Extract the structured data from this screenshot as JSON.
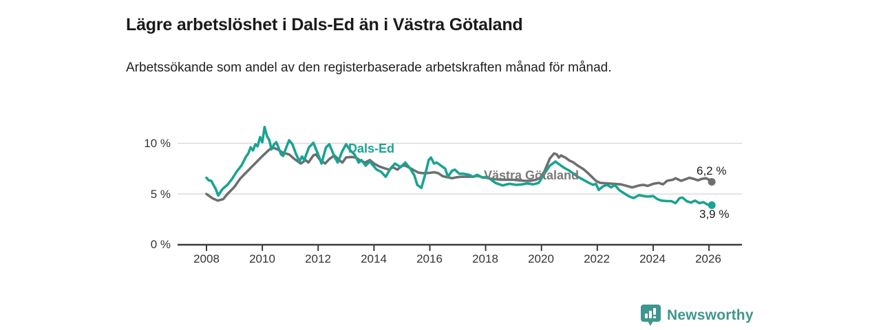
{
  "header": {
    "title": "Lägre arbetslöshet i Dals-Ed än i Västra Götaland",
    "subtitle": "Arbetssökande som andel av den registerbaserade arbetskraften månad för månad."
  },
  "chart_data": {
    "type": "line",
    "title": "Lägre arbetslöshet i Dals-Ed än i Västra Götaland",
    "xlabel": "",
    "ylabel": "",
    "grid": "horizontal-only",
    "grid_color": "#d8d8d8",
    "axis_color": "#3a3a3a",
    "ylim": [
      0,
      12.3
    ],
    "xlim": [
      2006.95,
      2027.2
    ],
    "grid_values": [
      5,
      10
    ],
    "y_ticks": [
      "10 %",
      "5 %",
      "0 %"
    ],
    "y_tick_values": [
      10,
      5,
      0
    ],
    "x_ticks": [
      "2008",
      "2010",
      "2012",
      "2014",
      "2016",
      "2018",
      "2020",
      "2022",
      "2024",
      "2026"
    ],
    "x_tick_values": [
      2008,
      2010,
      2012,
      2014,
      2016,
      2018,
      2020,
      2022,
      2024,
      2026
    ],
    "legend_position": "inline-labels",
    "series": [
      {
        "name": "Västra Götaland",
        "color": "#6e6e6e",
        "end_label": "6,2 %",
        "end_value": 6.2,
        "points": [
          [
            2008.0,
            5.0
          ],
          [
            2008.2,
            4.6
          ],
          [
            2008.4,
            4.35
          ],
          [
            2008.6,
            4.5
          ],
          [
            2008.75,
            5.0
          ],
          [
            2009.0,
            5.7
          ],
          [
            2009.2,
            6.5
          ],
          [
            2009.45,
            7.2
          ],
          [
            2009.7,
            7.9
          ],
          [
            2009.95,
            8.6
          ],
          [
            2010.2,
            9.25
          ],
          [
            2010.35,
            9.6
          ],
          [
            2010.55,
            9.4
          ],
          [
            2010.75,
            9.05
          ],
          [
            2010.96,
            8.9
          ],
          [
            2011.15,
            8.45
          ],
          [
            2011.38,
            8.0
          ],
          [
            2011.55,
            8.35
          ],
          [
            2011.65,
            8.1
          ],
          [
            2011.83,
            8.8
          ],
          [
            2011.92,
            8.9
          ],
          [
            2012.07,
            8.35
          ],
          [
            2012.25,
            8.0
          ],
          [
            2012.4,
            8.45
          ],
          [
            2012.58,
            8.8
          ],
          [
            2012.75,
            8.35
          ],
          [
            2012.87,
            8.1
          ],
          [
            2013.0,
            8.6
          ],
          [
            2013.2,
            8.65
          ],
          [
            2013.35,
            8.6
          ],
          [
            2013.5,
            8.3
          ],
          [
            2013.68,
            8.1
          ],
          [
            2013.85,
            8.35
          ],
          [
            2014.0,
            8.0
          ],
          [
            2014.2,
            7.7
          ],
          [
            2014.42,
            7.5
          ],
          [
            2014.55,
            7.4
          ],
          [
            2014.67,
            7.65
          ],
          [
            2014.84,
            7.4
          ],
          [
            2015.0,
            7.8
          ],
          [
            2015.12,
            7.8
          ],
          [
            2015.3,
            7.55
          ],
          [
            2015.46,
            7.3
          ],
          [
            2015.6,
            7.1
          ],
          [
            2015.78,
            7.05
          ],
          [
            2015.96,
            7.07
          ],
          [
            2016.15,
            7.15
          ],
          [
            2016.3,
            7.05
          ],
          [
            2016.47,
            6.75
          ],
          [
            2016.64,
            6.65
          ],
          [
            2016.8,
            6.55
          ],
          [
            2016.97,
            6.65
          ],
          [
            2017.13,
            6.7
          ],
          [
            2017.3,
            6.7
          ],
          [
            2017.55,
            6.7
          ],
          [
            2017.7,
            6.8
          ],
          [
            2017.88,
            6.65
          ],
          [
            2018.05,
            6.6
          ],
          [
            2018.2,
            6.5
          ],
          [
            2018.4,
            6.45
          ],
          [
            2018.6,
            6.4
          ],
          [
            2018.8,
            6.4
          ],
          [
            2019.0,
            6.4
          ],
          [
            2019.2,
            6.35
          ],
          [
            2019.4,
            6.3
          ],
          [
            2019.6,
            6.3
          ],
          [
            2019.8,
            6.4
          ],
          [
            2019.95,
            6.6
          ],
          [
            2020.1,
            7.2
          ],
          [
            2020.3,
            8.5
          ],
          [
            2020.45,
            9.0
          ],
          [
            2020.55,
            8.9
          ],
          [
            2020.62,
            8.6
          ],
          [
            2020.7,
            8.8
          ],
          [
            2020.85,
            8.6
          ],
          [
            2021.0,
            8.3
          ],
          [
            2021.15,
            8.1
          ],
          [
            2021.3,
            7.8
          ],
          [
            2021.5,
            7.45
          ],
          [
            2021.65,
            7.1
          ],
          [
            2021.8,
            6.7
          ],
          [
            2021.95,
            6.3
          ],
          [
            2022.1,
            6.1
          ],
          [
            2022.35,
            6.05
          ],
          [
            2022.6,
            6.0
          ],
          [
            2022.85,
            5.95
          ],
          [
            2023.05,
            5.8
          ],
          [
            2023.25,
            5.65
          ],
          [
            2023.5,
            5.85
          ],
          [
            2023.65,
            5.9
          ],
          [
            2023.8,
            5.8
          ],
          [
            2024.0,
            6.0
          ],
          [
            2024.2,
            6.1
          ],
          [
            2024.35,
            5.95
          ],
          [
            2024.5,
            6.3
          ],
          [
            2024.7,
            6.4
          ],
          [
            2024.8,
            6.55
          ],
          [
            2025.0,
            6.3
          ],
          [
            2025.15,
            6.45
          ],
          [
            2025.3,
            6.6
          ],
          [
            2025.45,
            6.5
          ],
          [
            2025.6,
            6.35
          ],
          [
            2025.75,
            6.5
          ],
          [
            2025.9,
            6.55
          ],
          [
            2026.0,
            6.4
          ],
          [
            2026.1,
            6.2
          ]
        ]
      },
      {
        "name": "Dals-Ed",
        "color": "#19a392",
        "end_label": "3,9 %",
        "end_value": 3.9,
        "points": [
          [
            2008.0,
            6.6
          ],
          [
            2008.08,
            6.35
          ],
          [
            2008.17,
            6.3
          ],
          [
            2008.25,
            5.9
          ],
          [
            2008.33,
            5.5
          ],
          [
            2008.42,
            4.85
          ],
          [
            2008.5,
            5.2
          ],
          [
            2008.58,
            5.5
          ],
          [
            2008.75,
            5.9
          ],
          [
            2008.92,
            6.5
          ],
          [
            2009.08,
            7.2
          ],
          [
            2009.25,
            7.8
          ],
          [
            2009.42,
            8.7
          ],
          [
            2009.5,
            9.0
          ],
          [
            2009.58,
            9.6
          ],
          [
            2009.67,
            9.3
          ],
          [
            2009.75,
            9.9
          ],
          [
            2009.83,
            9.7
          ],
          [
            2009.92,
            10.6
          ],
          [
            2010.0,
            10.1
          ],
          [
            2010.08,
            11.6
          ],
          [
            2010.17,
            10.7
          ],
          [
            2010.25,
            10.3
          ],
          [
            2010.33,
            9.4
          ],
          [
            2010.42,
            9.9
          ],
          [
            2010.5,
            10.1
          ],
          [
            2010.58,
            9.6
          ],
          [
            2010.67,
            8.9
          ],
          [
            2010.75,
            8.75
          ],
          [
            2010.83,
            9.4
          ],
          [
            2010.96,
            10.3
          ],
          [
            2011.08,
            9.9
          ],
          [
            2011.2,
            9.0
          ],
          [
            2011.33,
            8.2
          ],
          [
            2011.42,
            8.7
          ],
          [
            2011.5,
            8.35
          ],
          [
            2011.67,
            9.6
          ],
          [
            2011.83,
            10.05
          ],
          [
            2012.0,
            8.9
          ],
          [
            2012.12,
            8.0
          ],
          [
            2012.28,
            9.6
          ],
          [
            2012.4,
            9.9
          ],
          [
            2012.58,
            8.7
          ],
          [
            2012.7,
            8.1
          ],
          [
            2012.87,
            9.25
          ],
          [
            2013.0,
            9.9
          ],
          [
            2013.15,
            9.3
          ],
          [
            2013.3,
            8.9
          ],
          [
            2013.45,
            8.1
          ],
          [
            2013.55,
            8.35
          ],
          [
            2013.7,
            7.8
          ],
          [
            2013.85,
            8.2
          ],
          [
            2014.0,
            7.7
          ],
          [
            2014.1,
            7.4
          ],
          [
            2014.25,
            7.2
          ],
          [
            2014.42,
            6.7
          ],
          [
            2014.6,
            7.55
          ],
          [
            2014.75,
            8.0
          ],
          [
            2014.96,
            7.65
          ],
          [
            2015.12,
            8.1
          ],
          [
            2015.3,
            7.5
          ],
          [
            2015.45,
            6.8
          ],
          [
            2015.55,
            5.9
          ],
          [
            2015.7,
            5.6
          ],
          [
            2015.83,
            6.9
          ],
          [
            2015.96,
            8.35
          ],
          [
            2016.04,
            8.6
          ],
          [
            2016.15,
            8.0
          ],
          [
            2016.25,
            8.1
          ],
          [
            2016.4,
            7.8
          ],
          [
            2016.55,
            7.5
          ],
          [
            2016.65,
            6.7
          ],
          [
            2016.8,
            7.3
          ],
          [
            2016.9,
            7.4
          ],
          [
            2017.05,
            7.0
          ],
          [
            2017.2,
            7.0
          ],
          [
            2017.4,
            6.9
          ],
          [
            2017.55,
            6.7
          ],
          [
            2017.7,
            6.9
          ],
          [
            2017.9,
            6.6
          ],
          [
            2018.05,
            6.7
          ],
          [
            2018.2,
            6.4
          ],
          [
            2018.35,
            6.1
          ],
          [
            2018.6,
            5.85
          ],
          [
            2018.85,
            6.0
          ],
          [
            2019.1,
            5.9
          ],
          [
            2019.3,
            5.95
          ],
          [
            2019.5,
            6.05
          ],
          [
            2019.7,
            5.95
          ],
          [
            2019.9,
            6.1
          ],
          [
            2020.1,
            7.0
          ],
          [
            2020.3,
            7.8
          ],
          [
            2020.5,
            8.2
          ],
          [
            2020.65,
            7.9
          ],
          [
            2020.8,
            7.6
          ],
          [
            2021.0,
            7.3
          ],
          [
            2021.15,
            7.0
          ],
          [
            2021.3,
            6.7
          ],
          [
            2021.5,
            6.4
          ],
          [
            2021.7,
            6.1
          ],
          [
            2021.85,
            5.9
          ],
          [
            2021.95,
            6.0
          ],
          [
            2022.05,
            5.4
          ],
          [
            2022.2,
            5.75
          ],
          [
            2022.35,
            5.9
          ],
          [
            2022.5,
            5.65
          ],
          [
            2022.62,
            5.9
          ],
          [
            2022.8,
            5.35
          ],
          [
            2023.0,
            5.0
          ],
          [
            2023.15,
            4.75
          ],
          [
            2023.3,
            4.6
          ],
          [
            2023.5,
            4.9
          ],
          [
            2023.65,
            4.8
          ],
          [
            2023.8,
            4.75
          ],
          [
            2024.0,
            4.8
          ],
          [
            2024.15,
            4.5
          ],
          [
            2024.3,
            4.35
          ],
          [
            2024.5,
            4.3
          ],
          [
            2024.65,
            4.3
          ],
          [
            2024.8,
            4.1
          ],
          [
            2024.95,
            4.6
          ],
          [
            2025.05,
            4.65
          ],
          [
            2025.2,
            4.3
          ],
          [
            2025.35,
            4.15
          ],
          [
            2025.5,
            4.35
          ],
          [
            2025.65,
            4.1
          ],
          [
            2025.8,
            4.2
          ],
          [
            2025.95,
            3.95
          ],
          [
            2026.1,
            3.9
          ]
        ]
      }
    ]
  },
  "footer": {
    "brand": "Newsworthy",
    "logo_icon": "newsworthy-bar-chart-badge",
    "brand_color": "#3f968e"
  }
}
